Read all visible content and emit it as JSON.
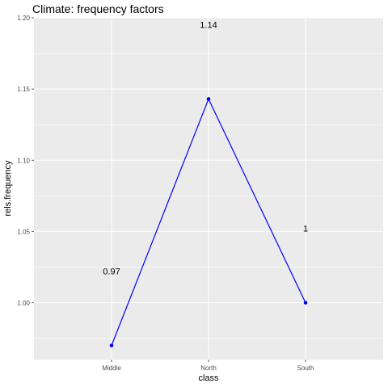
{
  "chart_data": {
    "type": "line",
    "title": "Climate: frequency factors",
    "xlabel": "class",
    "ylabel": "rels.frequency",
    "categories": [
      "Middle",
      "North",
      "South"
    ],
    "series": [
      {
        "values": [
          0.97,
          1.143,
          1.0
        ]
      }
    ],
    "data_labels": [
      "0.97",
      "1.14",
      "1"
    ],
    "ylim": [
      0.96,
      1.2
    ],
    "yticks": [
      1.0,
      1.05,
      1.1,
      1.15,
      1.2
    ],
    "ytick_labels": [
      "1.00",
      "1.05",
      "1.10",
      "1.15",
      "1.20"
    ],
    "grid": true,
    "legend": "none",
    "colors": {
      "line": "#0000ff",
      "point": "#0000ff",
      "panel_background": "#ebebeb",
      "grid": "#ffffff"
    }
  }
}
